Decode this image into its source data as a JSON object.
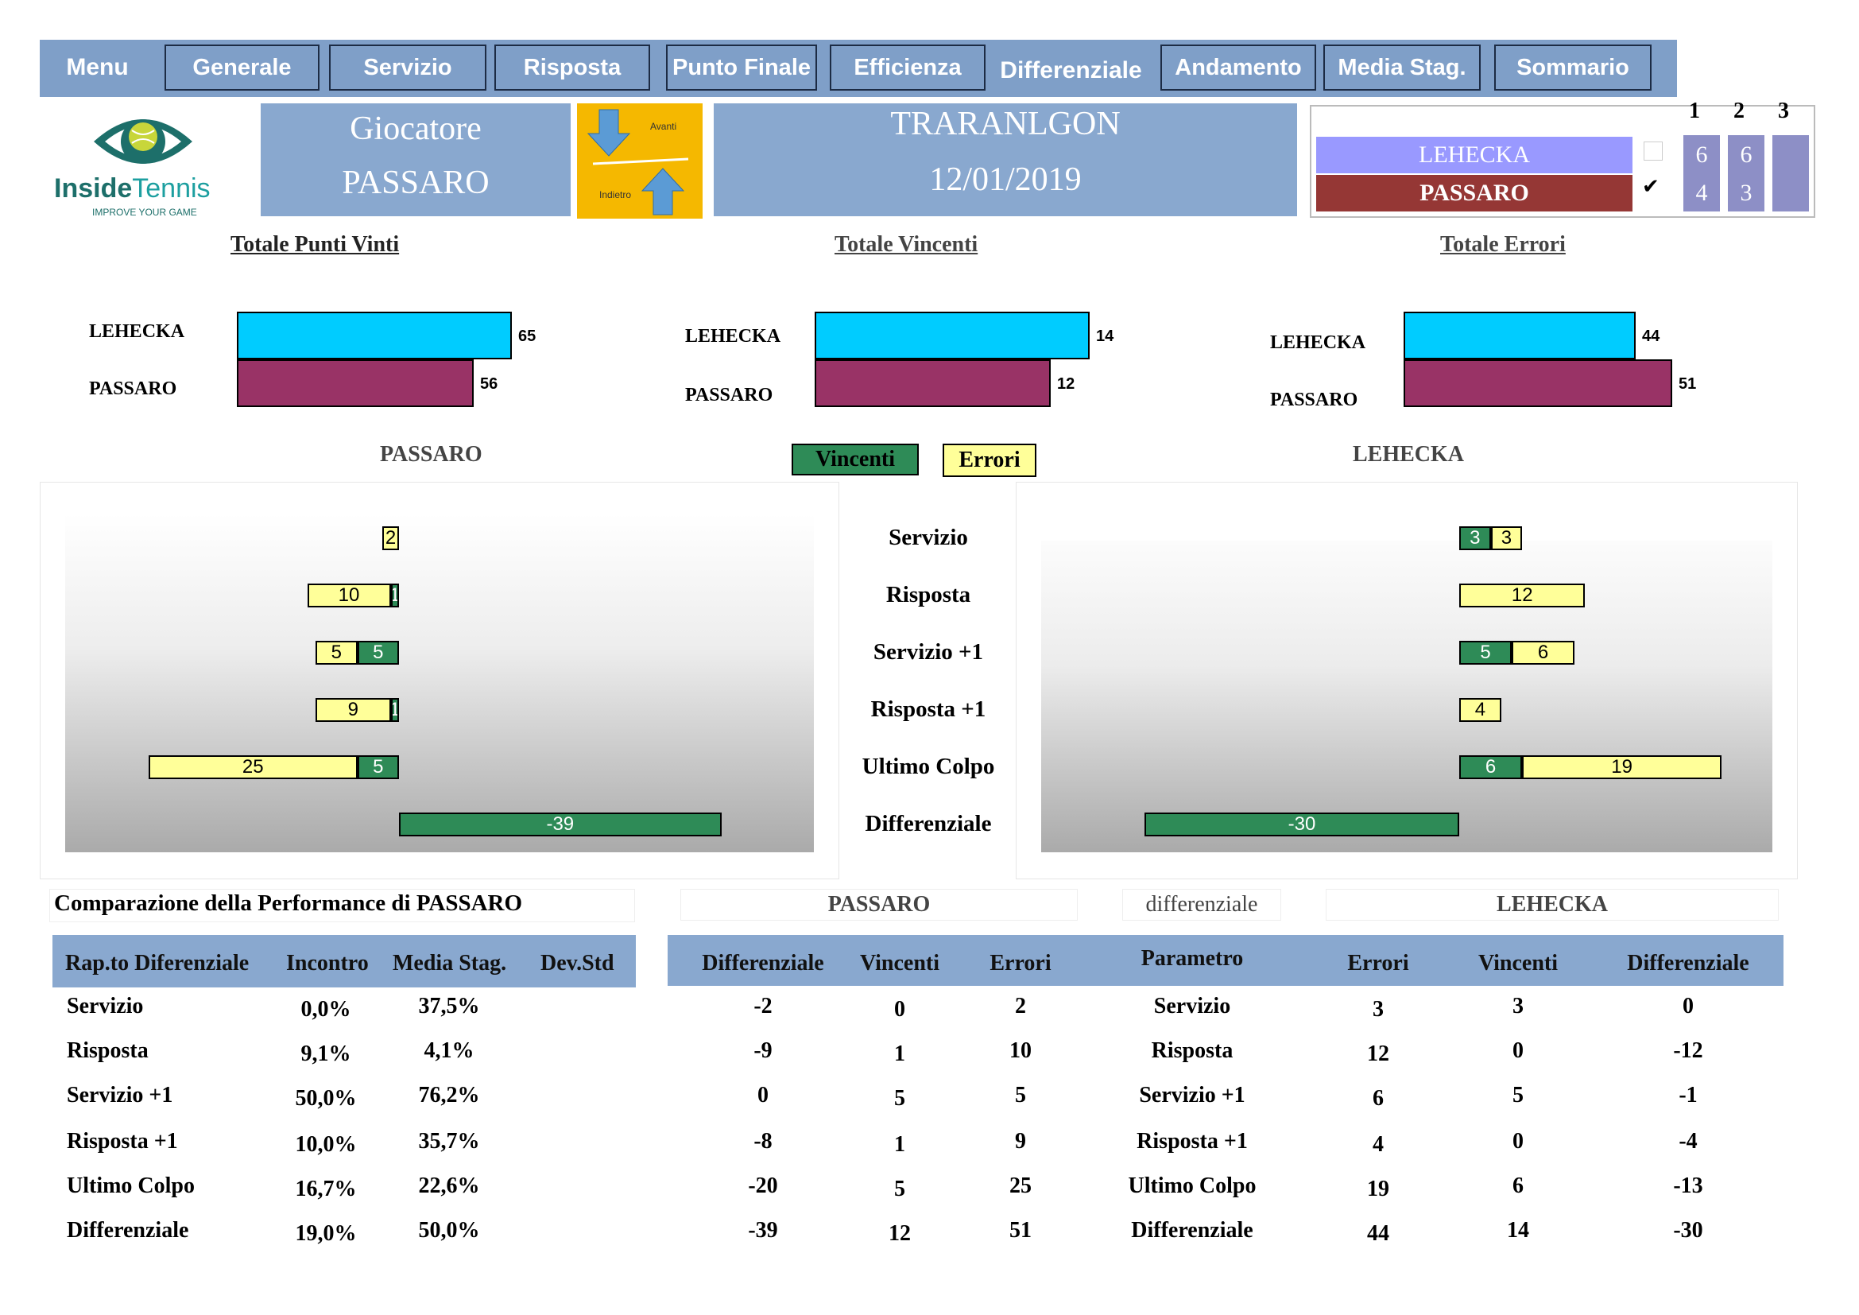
{
  "nav": {
    "menu": "Menu",
    "items": [
      "Generale",
      "Servizio",
      "Risposta",
      "Punto Finale",
      "Efficienza",
      "Differenziale",
      "Andamento",
      "Media Stag.",
      "Sommario"
    ]
  },
  "logo": {
    "brand_a": "Inside",
    "brand_b": "Tennis",
    "tagline": "IMPROVE YOUR GAME"
  },
  "header": {
    "player_label": "Giocatore",
    "player_name": "PASSARO",
    "nav_forward": "Avanti",
    "nav_back": "Indietro",
    "tournament": "TRARANLGON",
    "date": "12/01/2019"
  },
  "score": {
    "set_headers": [
      "1",
      "2",
      "3"
    ],
    "players": [
      {
        "name": "LEHECKA",
        "sets": [
          "6",
          "6",
          ""
        ],
        "checked": false,
        "color": "#9999ff"
      },
      {
        "name": "PASSARO",
        "sets": [
          "4",
          "3",
          ""
        ],
        "checked": true,
        "color": "#953735"
      }
    ],
    "check_mark": "✔"
  },
  "summary_charts": [
    {
      "title": "Totale Punti Vinti",
      "rows": [
        {
          "player": "LEHECKA",
          "value": 65
        },
        {
          "player": "PASSARO",
          "value": 56
        }
      ]
    },
    {
      "title": "Totale Vincenti",
      "rows": [
        {
          "player": "LEHECKA",
          "value": 14
        },
        {
          "player": "PASSARO",
          "value": 12
        }
      ]
    },
    {
      "title": "Totale Errori",
      "rows": [
        {
          "player": "LEHECKA",
          "value": 44
        },
        {
          "player": "PASSARO",
          "value": 51
        }
      ]
    }
  ],
  "colors": {
    "lehecka": "#00ccff",
    "passaro": "#993366",
    "winners": "#2e8b57",
    "errors": "#ffff99"
  },
  "legend": {
    "winners": "Vincenti",
    "errors": "Errori"
  },
  "chart_data": {
    "type": "bar",
    "categories": [
      "Servizio",
      "Risposta",
      "Servizio +1",
      "Risposta +1",
      "Ultimo Colpo",
      "Differenziale"
    ],
    "left_player": "PASSARO",
    "right_player": "LEHECKA",
    "series": [
      {
        "name": "Vincenti",
        "player": "PASSARO",
        "values": [
          0,
          1,
          5,
          1,
          5,
          null
        ]
      },
      {
        "name": "Errori",
        "player": "PASSARO",
        "values": [
          2,
          10,
          5,
          9,
          25,
          null
        ]
      },
      {
        "name": "Differenziale",
        "player": "PASSARO",
        "values": [
          null,
          null,
          null,
          null,
          null,
          -39
        ]
      },
      {
        "name": "Vincenti",
        "player": "LEHECKA",
        "values": [
          3,
          0,
          5,
          0,
          6,
          null
        ]
      },
      {
        "name": "Errori",
        "player": "LEHECKA",
        "values": [
          3,
          12,
          6,
          4,
          19,
          null
        ]
      },
      {
        "name": "Differenziale",
        "player": "LEHECKA",
        "values": [
          null,
          null,
          null,
          null,
          null,
          -30
        ]
      }
    ]
  },
  "comparison": {
    "title": "Comparazione della Performance di PASSARO",
    "headers": [
      "Rap.to Diferenziale",
      "Incontro",
      "Media Stag.",
      "Dev.Std"
    ],
    "rows": [
      [
        "Servizio",
        "0,0%",
        "37,5%",
        ""
      ],
      [
        "Risposta",
        "9,1%",
        "4,1%",
        ""
      ],
      [
        "Servizio +1",
        "50,0%",
        "76,2%",
        ""
      ],
      [
        "Risposta +1",
        "10,0%",
        "35,7%",
        ""
      ],
      [
        "Ultimo Colpo",
        "16,7%",
        "22,6%",
        ""
      ],
      [
        "Differenziale",
        "19,0%",
        "50,0%",
        ""
      ]
    ]
  },
  "diff_table": {
    "left_title": "PASSARO",
    "mid_title": "differenziale",
    "right_title": "LEHECKA",
    "headers": [
      "Differenziale",
      "Vincenti",
      "Errori",
      "Parametro",
      "Errori",
      "Vincenti",
      "Differenziale"
    ],
    "rows": [
      [
        "-2",
        "0",
        "2",
        "Servizio",
        "3",
        "3",
        "0"
      ],
      [
        "-9",
        "1",
        "10",
        "Risposta",
        "12",
        "0",
        "-12"
      ],
      [
        "0",
        "5",
        "5",
        "Servizio +1",
        "6",
        "5",
        "-1"
      ],
      [
        "-8",
        "1",
        "9",
        "Risposta +1",
        "4",
        "0",
        "-4"
      ],
      [
        "-20",
        "5",
        "25",
        "Ultimo Colpo",
        "19",
        "6",
        "-13"
      ],
      [
        "-39",
        "12",
        "51",
        "Differenziale",
        "44",
        "14",
        "-30"
      ]
    ]
  }
}
